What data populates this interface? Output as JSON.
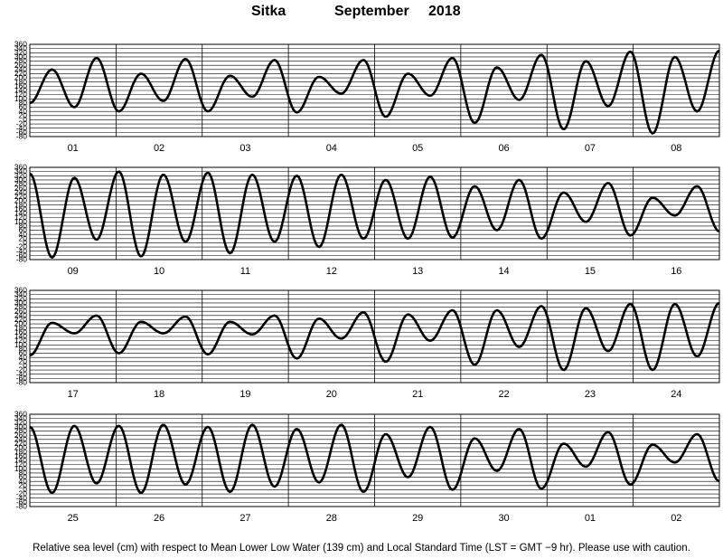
{
  "title": {
    "station": "Sitka",
    "month": "September",
    "year": "2018"
  },
  "footer": "Relative sea level (cm) with respect to Mean Lower Low Water (139 cm) and Local Standard Time (LST = GMT −9 hr). Please use with caution.",
  "chart_data": {
    "type": "line",
    "ylabel": "",
    "ylim": [
      -80,
      360
    ],
    "yticks": [
      360,
      340,
      320,
      300,
      280,
      260,
      240,
      220,
      200,
      180,
      160,
      140,
      120,
      100,
      80,
      60,
      40,
      20,
      0,
      -20,
      -40,
      -60,
      -80
    ],
    "grid": true,
    "line_color": "#000000",
    "panels": [
      {
        "days": [
          "01",
          "02",
          "03",
          "04",
          "05",
          "06",
          "07",
          "08"
        ],
        "series": [
          {
            "values": [
              [
                0.0,
                80
              ],
              [
                0.5,
                240
              ],
              [
                1.0,
                60
              ],
              [
                1.5,
                295
              ],
              [
                2.0,
                40
              ],
              [
                2.5,
                220
              ],
              [
                3.0,
                90
              ],
              [
                3.5,
                290
              ],
              [
                4.0,
                40
              ],
              [
                4.5,
                210
              ],
              [
                5.0,
                110
              ],
              [
                5.5,
                285
              ],
              [
                6.0,
                35
              ],
              [
                6.5,
                205
              ],
              [
                7.0,
                125
              ],
              [
                7.5,
                285
              ],
              [
                8.0,
                15
              ],
              [
                8.5,
                220
              ],
              [
                9.0,
                115
              ],
              [
                9.5,
                295
              ],
              [
                10.0,
                -15
              ],
              [
                10.5,
                250
              ],
              [
                11.0,
                95
              ],
              [
                11.5,
                310
              ],
              [
                12.0,
                -45
              ],
              [
                12.5,
                280
              ],
              [
                13.0,
                65
              ],
              [
                13.5,
                325
              ],
              [
                14.0,
                -65
              ],
              [
                14.5,
                300
              ],
              [
                15.0,
                40
              ],
              [
                15.5,
                330
              ]
            ]
          }
        ]
      },
      {
        "days": [
          "09",
          "10",
          "11",
          "12",
          "13",
          "14",
          "15",
          "16"
        ],
        "series": [
          {
            "values": [
              [
                0.0,
                330
              ],
              [
                0.5,
                -70
              ],
              [
                1.0,
                310
              ],
              [
                1.5,
                15
              ],
              [
                2.0,
                340
              ],
              [
                2.5,
                -65
              ],
              [
                3.0,
                325
              ],
              [
                3.5,
                5
              ],
              [
                4.0,
                335
              ],
              [
                4.5,
                -50
              ],
              [
                5.0,
                325
              ],
              [
                5.5,
                5
              ],
              [
                6.0,
                320
              ],
              [
                6.5,
                -20
              ],
              [
                7.0,
                325
              ],
              [
                7.5,
                20
              ],
              [
                8.0,
                300
              ],
              [
                8.5,
                20
              ],
              [
                9.0,
                315
              ],
              [
                9.5,
                25
              ],
              [
                10.0,
                270
              ],
              [
                10.5,
                60
              ],
              [
                11.0,
                300
              ],
              [
                11.5,
                20
              ],
              [
                12.0,
                240
              ],
              [
                12.5,
                100
              ],
              [
                13.0,
                285
              ],
              [
                13.5,
                35
              ],
              [
                14.0,
                215
              ],
              [
                14.5,
                130
              ],
              [
                15.0,
                270
              ],
              [
                15.5,
                55
              ]
            ]
          }
        ]
      },
      {
        "days": [
          "17",
          "18",
          "19",
          "20",
          "21",
          "22",
          "23",
          "24"
        ],
        "series": [
          {
            "values": [
              [
                0.0,
                50
              ],
              [
                0.5,
                205
              ],
              [
                1.0,
                155
              ],
              [
                1.5,
                240
              ],
              [
                2.0,
                60
              ],
              [
                2.5,
                210
              ],
              [
                3.0,
                155
              ],
              [
                3.5,
                235
              ],
              [
                4.0,
                55
              ],
              [
                4.5,
                210
              ],
              [
                5.0,
                150
              ],
              [
                5.5,
                240
              ],
              [
                6.0,
                35
              ],
              [
                6.5,
                225
              ],
              [
                7.0,
                130
              ],
              [
                7.5,
                255
              ],
              [
                8.0,
                20
              ],
              [
                8.5,
                245
              ],
              [
                9.0,
                120
              ],
              [
                9.5,
                265
              ],
              [
                10.0,
                5
              ],
              [
                10.5,
                265
              ],
              [
                11.0,
                90
              ],
              [
                11.5,
                285
              ],
              [
                12.0,
                -20
              ],
              [
                12.5,
                275
              ],
              [
                13.0,
                70
              ],
              [
                13.5,
                295
              ],
              [
                14.0,
                -20
              ],
              [
                14.5,
                295
              ],
              [
                15.0,
                45
              ],
              [
                15.5,
                300
              ]
            ]
          }
        ]
      },
      {
        "days": [
          "25",
          "26",
          "27",
          "28",
          "29",
          "30",
          "01",
          "02"
        ],
        "series": [
          {
            "values": [
              [
                0.0,
                300
              ],
              [
                0.5,
                -15
              ],
              [
                1.0,
                305
              ],
              [
                1.5,
                30
              ],
              [
                2.0,
                305
              ],
              [
                2.5,
                -15
              ],
              [
                3.0,
                310
              ],
              [
                3.5,
                25
              ],
              [
                4.0,
                300
              ],
              [
                4.5,
                -10
              ],
              [
                5.0,
                310
              ],
              [
                5.5,
                15
              ],
              [
                6.0,
                290
              ],
              [
                6.5,
                35
              ],
              [
                7.0,
                310
              ],
              [
                7.5,
                -10
              ],
              [
                8.0,
                265
              ],
              [
                8.5,
                60
              ],
              [
                9.0,
                300
              ],
              [
                9.5,
                0
              ],
              [
                10.0,
                245
              ],
              [
                10.5,
                90
              ],
              [
                11.0,
                290
              ],
              [
                11.5,
                5
              ],
              [
                12.0,
                220
              ],
              [
                12.5,
                110
              ],
              [
                13.0,
                275
              ],
              [
                13.5,
                25
              ],
              [
                14.0,
                215
              ],
              [
                14.5,
                130
              ],
              [
                15.0,
                265
              ],
              [
                15.5,
                40
              ]
            ]
          }
        ]
      }
    ]
  }
}
